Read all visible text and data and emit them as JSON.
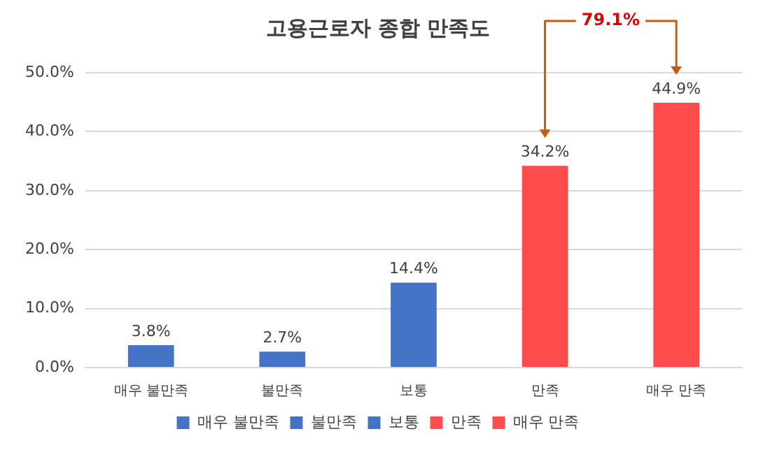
{
  "chart_data": {
    "type": "bar",
    "title": "고용근로자 종합 만족도",
    "categories": [
      "매우 불만족",
      "불만족",
      "보통",
      "만족",
      "매우 만족"
    ],
    "series": [
      {
        "name": "매우 불만족",
        "color": "#4472c4",
        "values": [
          3.8,
          null,
          null,
          null,
          null
        ],
        "value_labels": [
          "3.8%",
          null,
          null,
          null,
          null
        ]
      },
      {
        "name": "불만족",
        "color": "#4472c4",
        "values": [
          null,
          2.7,
          null,
          null,
          null
        ],
        "value_labels": [
          null,
          "2.7%",
          null,
          null,
          null
        ]
      },
      {
        "name": "보통",
        "color": "#4472c4",
        "values": [
          null,
          null,
          14.4,
          null,
          null
        ],
        "value_labels": [
          null,
          null,
          "14.4%",
          null,
          null
        ]
      },
      {
        "name": "만족",
        "color": "#ff4b4b",
        "values": [
          null,
          null,
          null,
          34.2,
          null
        ],
        "value_labels": [
          null,
          null,
          null,
          "34.2%",
          null
        ]
      },
      {
        "name": "매우 만족",
        "color": "#ff4b4b",
        "values": [
          null,
          null,
          null,
          null,
          44.9
        ],
        "value_labels": [
          null,
          null,
          null,
          null,
          "44.9%"
        ]
      }
    ],
    "ylim": [
      0,
      50
    ],
    "yticks": [
      {
        "value": 0,
        "label": "0.0%"
      },
      {
        "value": 10,
        "label": "10.0%"
      },
      {
        "value": 20,
        "label": "20.0%"
      },
      {
        "value": 30,
        "label": "30.0%"
      },
      {
        "value": 40,
        "label": "40.0%"
      },
      {
        "value": 50,
        "label": "50.0%"
      }
    ],
    "grid": "y",
    "legend": "bottom",
    "annotations": [
      "79.1%"
    ]
  }
}
